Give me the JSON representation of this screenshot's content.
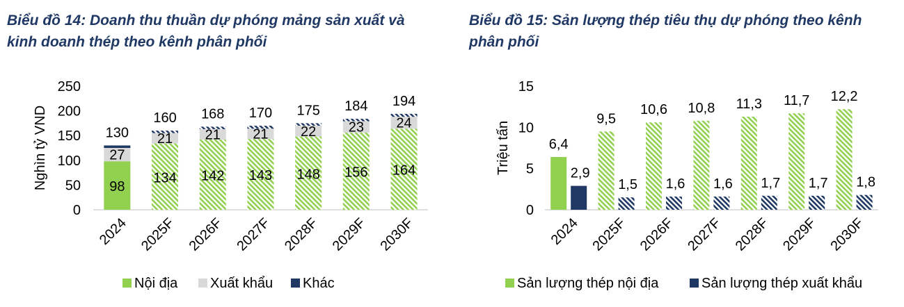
{
  "chart_data": [
    {
      "type": "bar",
      "stacked": true,
      "title": "Biểu đồ 14: Doanh thu thuần dự phóng mảng sản xuất và kinh doanh thép theo kênh phân phối",
      "ylabel": "Nghìn tỷ VND",
      "ylim": [
        0,
        250
      ],
      "yticks": [
        "0",
        "50",
        "100",
        "150",
        "200",
        "250"
      ],
      "categories": [
        "2024",
        "2025F",
        "2026F",
        "2027F",
        "2028F",
        "2029F",
        "2030F"
      ],
      "series": [
        {
          "name": "Nội địa",
          "values": [
            98,
            134,
            142,
            143,
            148,
            156,
            164
          ],
          "labels": [
            "98",
            "134",
            "142",
            "143",
            "148",
            "156",
            "164"
          ]
        },
        {
          "name": "Xuất khẩu",
          "values": [
            27,
            21,
            21,
            21,
            22,
            23,
            24
          ],
          "labels": [
            "27",
            "21",
            "21",
            "21",
            "22",
            "23",
            "24"
          ]
        },
        {
          "name": "Khác",
          "values": [
            5,
            5,
            5,
            6,
            5,
            5,
            6
          ]
        }
      ],
      "totals": [
        "130",
        "160",
        "168",
        "170",
        "175",
        "184",
        "194"
      ],
      "legend_position": "bottom",
      "colors": {
        "solid_green": "#92d050",
        "hatch_green": "#92d050",
        "grey": "#d9d9d9",
        "navy": "#1f3864"
      }
    },
    {
      "type": "bar",
      "title": "Biểu đồ 15: Sản lượng thép tiêu thụ dự phóng theo kênh phân phối",
      "ylabel": "Triệu tấn",
      "ylim": [
        0,
        15
      ],
      "yticks": [
        "0",
        "5",
        "10",
        "15"
      ],
      "categories": [
        "2024",
        "2025F",
        "2026F",
        "2027F",
        "2028F",
        "2029F",
        "2030F"
      ],
      "series": [
        {
          "name": "Sản lượng thép nội địa",
          "values": [
            6.4,
            9.5,
            10.6,
            10.8,
            11.3,
            11.7,
            12.2
          ],
          "labels": [
            "6,4",
            "9,5",
            "10,6",
            "10,8",
            "11,3",
            "11,7",
            "12,2"
          ]
        },
        {
          "name": "Sản lượng thép xuất khẩu",
          "values": [
            2.9,
            1.5,
            1.6,
            1.6,
            1.7,
            1.7,
            1.8
          ],
          "labels": [
            "2,9",
            "1,5",
            "1,6",
            "1,6",
            "1,7",
            "1,7",
            "1,8"
          ]
        }
      ],
      "legend_position": "bottom",
      "colors": {
        "green": "#92d050",
        "navy": "#1f3864"
      }
    }
  ]
}
